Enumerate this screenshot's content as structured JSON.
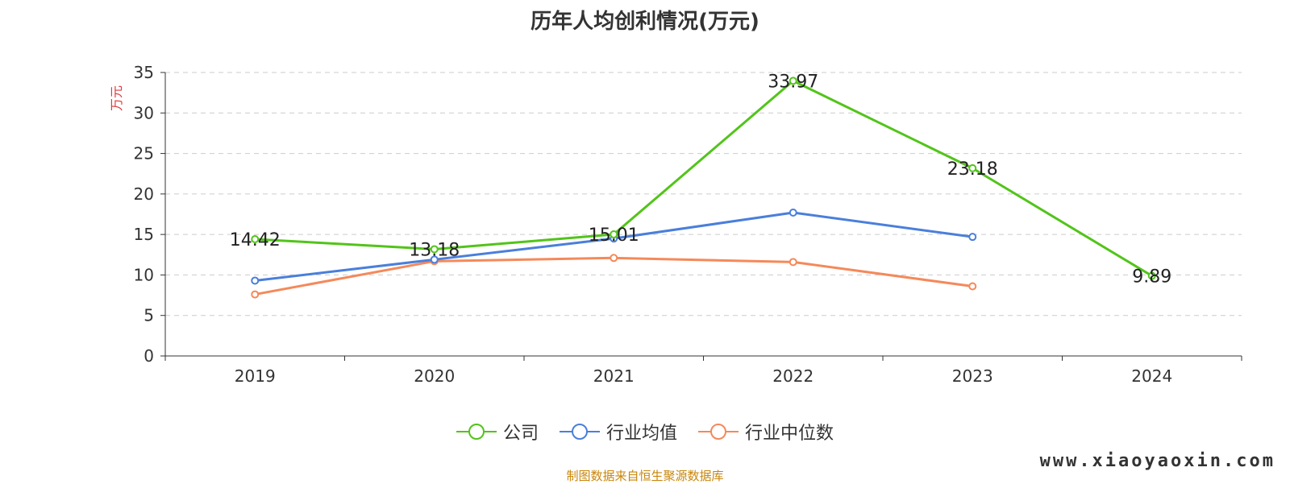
{
  "chart_data": {
    "type": "line",
    "title": "历年人均创利情况(万元)",
    "ylabel": "万元",
    "xlabel": "",
    "categories": [
      "2019",
      "2020",
      "2021",
      "2022",
      "2023",
      "2024"
    ],
    "ylim": [
      0,
      35
    ],
    "yticks": [
      0,
      5,
      10,
      15,
      20,
      25,
      30,
      35
    ],
    "grid": true,
    "legend_position": "bottom",
    "series": [
      {
        "name": "公司",
        "color": "#52c41a",
        "values": [
          14.42,
          13.18,
          15.01,
          33.97,
          23.18,
          9.89
        ],
        "labels": [
          "14.42",
          "13.18",
          "15.01",
          "33.97",
          "23.18",
          "9.89"
        ]
      },
      {
        "name": "行业均值",
        "color": "#4a7fdb",
        "values": [
          9.3,
          11.9,
          14.5,
          17.7,
          14.7,
          null
        ]
      },
      {
        "name": "行业中位数",
        "color": "#f5895a",
        "values": [
          7.6,
          11.7,
          12.1,
          11.6,
          8.6,
          null
        ]
      }
    ]
  },
  "source_note": "制图数据来自恒生聚源数据库",
  "watermark": "www.xiaoyaoxin.com"
}
